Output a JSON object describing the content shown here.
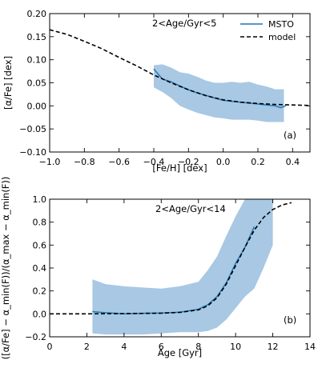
{
  "chart_data": [
    {
      "type": "line",
      "panel_label": "(a)",
      "annotation": "2<Age/Gyr<5",
      "xlabel": "[Fe/H] [dex]",
      "ylabel": "[α/Fe] [dex]",
      "xlim": [
        -1.0,
        0.5
      ],
      "ylim": [
        -0.1,
        0.2
      ],
      "xticks": [
        -1.0,
        -0.8,
        -0.6,
        -0.4,
        -0.2,
        0.0,
        0.2,
        0.4
      ],
      "xtick_labels": [
        "−1.0",
        "−0.8",
        "−0.6",
        "−0.4",
        "−0.2",
        "0.0",
        "0.2",
        "0.4"
      ],
      "yticks": [
        -0.1,
        -0.05,
        0.0,
        0.05,
        0.1,
        0.15,
        0.2
      ],
      "ytick_labels": [
        "−0.10",
        "−0.05",
        "0.00",
        "0.05",
        "0.10",
        "0.15",
        "0.20"
      ],
      "grid": false,
      "legend_position": "top-right",
      "legend": [
        {
          "name": "MSTO",
          "style": "solid",
          "color": "#1f77b4"
        },
        {
          "name": "model",
          "style": "dashed",
          "color": "#000000"
        }
      ],
      "band_color": "#a8c8e4",
      "band": {
        "x": [
          -0.4,
          -0.35,
          -0.3,
          -0.25,
          -0.2,
          -0.15,
          -0.1,
          -0.05,
          0.0,
          0.05,
          0.1,
          0.15,
          0.2,
          0.25,
          0.3,
          0.35
        ],
        "upper": [
          0.088,
          0.09,
          0.083,
          0.073,
          0.07,
          0.063,
          0.055,
          0.05,
          0.05,
          0.052,
          0.05,
          0.052,
          0.046,
          0.042,
          0.036,
          0.036
        ],
        "lower": [
          0.04,
          0.03,
          0.017,
          0.0,
          -0.008,
          -0.015,
          -0.02,
          -0.025,
          -0.027,
          -0.03,
          -0.03,
          -0.03,
          -0.032,
          -0.035,
          -0.035,
          -0.035
        ]
      },
      "series": [
        {
          "name": "MSTO",
          "x": [
            -0.4,
            -0.35,
            -0.3,
            -0.25,
            -0.2,
            -0.15,
            -0.1,
            -0.05,
            0.0,
            0.05,
            0.1,
            0.15,
            0.2,
            0.25,
            0.3,
            0.33,
            0.36
          ],
          "y": [
            0.08,
            0.058,
            0.052,
            0.043,
            0.035,
            0.028,
            0.023,
            0.017,
            0.012,
            0.01,
            0.008,
            0.006,
            0.004,
            0.002,
            0.0,
            -0.004,
            0.0
          ]
        },
        {
          "name": "model",
          "x": [
            -1.0,
            -0.9,
            -0.8,
            -0.7,
            -0.6,
            -0.5,
            -0.4,
            -0.3,
            -0.2,
            -0.1,
            0.0,
            0.1,
            0.2,
            0.3,
            0.4,
            0.5
          ],
          "y": [
            0.165,
            0.155,
            0.14,
            0.124,
            0.105,
            0.087,
            0.067,
            0.05,
            0.035,
            0.022,
            0.013,
            0.008,
            0.005,
            0.003,
            0.002,
            0.001
          ]
        }
      ]
    },
    {
      "type": "line",
      "panel_label": "(b)",
      "annotation": "2<Age/Gyr<14",
      "xlabel": "Age [Gyr]",
      "ylabel": "([α/Fe] − α_min(F))/(α_max − α_min(F))",
      "xlim": [
        0,
        14
      ],
      "ylim": [
        -0.2,
        1.0
      ],
      "xticks": [
        0,
        2,
        4,
        6,
        8,
        10,
        12,
        14
      ],
      "xtick_labels": [
        "0",
        "2",
        "4",
        "6",
        "8",
        "10",
        "12",
        "14"
      ],
      "yticks": [
        -0.2,
        0.0,
        0.2,
        0.4,
        0.6,
        0.8,
        1.0
      ],
      "ytick_labels": [
        "−0.2",
        "0.0",
        "0.2",
        "0.4",
        "0.6",
        "0.8",
        "1.0"
      ],
      "grid": false,
      "band_color": "#a8c8e4",
      "band": {
        "x": [
          2.3,
          3.0,
          4.0,
          5.0,
          6.0,
          7.0,
          8.0,
          8.5,
          9.0,
          9.5,
          10.0,
          10.5,
          11.0,
          11.5,
          12.0
        ],
        "upper": [
          0.3,
          0.26,
          0.24,
          0.23,
          0.22,
          0.24,
          0.28,
          0.38,
          0.5,
          0.68,
          0.85,
          1.0,
          1.0,
          1.0,
          1.0
        ],
        "lower": [
          -0.17,
          -0.18,
          -0.18,
          -0.18,
          -0.17,
          -0.16,
          -0.16,
          -0.15,
          -0.12,
          -0.05,
          0.05,
          0.15,
          0.22,
          0.4,
          0.6
        ]
      },
      "series": [
        {
          "name": "MSTO",
          "x": [
            2.3,
            3.0,
            4.0,
            5.0,
            6.0,
            7.0,
            8.0,
            8.5,
            9.0,
            9.5,
            10.0,
            10.5,
            11.0
          ],
          "y": [
            0.02,
            0.01,
            0.0,
            0.005,
            0.008,
            0.015,
            0.04,
            0.08,
            0.15,
            0.27,
            0.44,
            0.58,
            0.76
          ]
        },
        {
          "name": "model",
          "x": [
            0,
            2,
            4,
            6,
            7,
            8,
            8.5,
            9,
            9.5,
            10,
            10.5,
            11,
            11.5,
            12,
            12.5,
            13
          ],
          "y": [
            0.0,
            0.0,
            0.002,
            0.006,
            0.013,
            0.035,
            0.07,
            0.14,
            0.26,
            0.42,
            0.58,
            0.73,
            0.84,
            0.91,
            0.95,
            0.97
          ]
        }
      ]
    }
  ]
}
